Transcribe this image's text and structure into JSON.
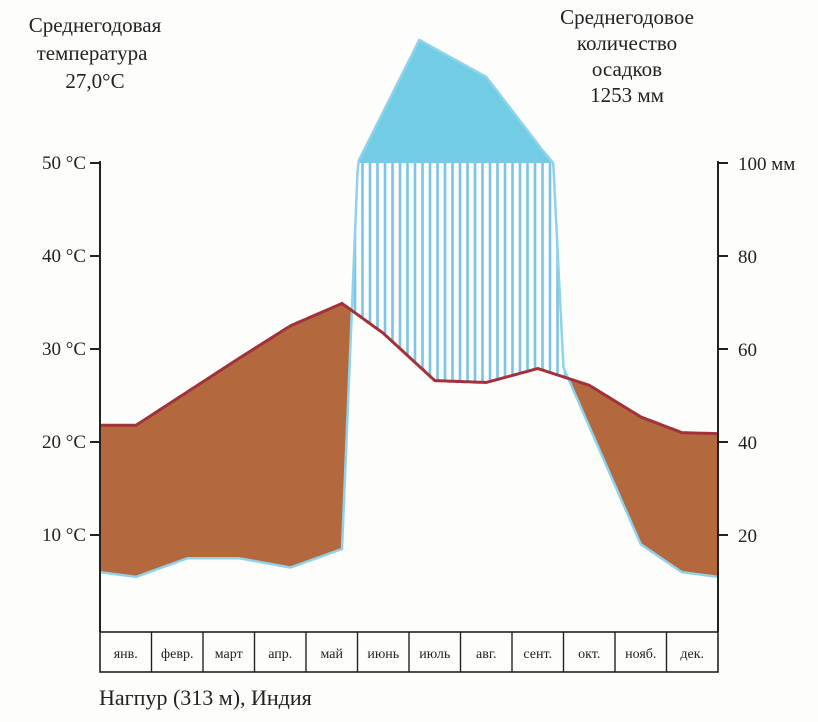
{
  "left_caption": {
    "line1": "Среднегодовая",
    "line2": "температура",
    "line3": "27,0°C"
  },
  "right_caption": {
    "line1": "Среднегодовое",
    "line2": "количество",
    "line3": "осадков",
    "line4": "1253 мм"
  },
  "footer_caption": "Нагпур (313 м), Индия",
  "colors": {
    "temperature_line": "#a1323a",
    "dry_fill": "#b4683e",
    "humid_fill": "#7cc4e4",
    "excess_fill": "#72cce4",
    "precip_outline": "#8fd3ea"
  },
  "chart_data": {
    "type": "climate-diagram",
    "categories": [
      "янв.",
      "февр.",
      "март",
      "апр.",
      "май",
      "июнь",
      "июль",
      "авг.",
      "сент.",
      "окт.",
      "нояб.",
      "дек."
    ],
    "left_axis": {
      "unit": "°C",
      "ylim": [
        0,
        50
      ],
      "ticks": [
        10,
        20,
        30,
        40,
        50
      ],
      "tick_labels": [
        "10 °C",
        "20 °C",
        "30 °C",
        "40 °C",
        "50 °C"
      ]
    },
    "right_axis": {
      "unit": "мм",
      "ylim": [
        0,
        100
      ],
      "ticks": [
        20,
        40,
        60,
        80,
        100
      ],
      "tick_labels": [
        "20",
        "40",
        "60",
        "80",
        "100 мм"
      ]
    },
    "series": [
      {
        "name": "temperature",
        "unit": "°C",
        "x": [
          0,
          0.7,
          1.7,
          2.7,
          3.7,
          4.7,
          5.5,
          6.5,
          7.5,
          8.5,
          9.5,
          10.5,
          11.3,
          12
        ],
        "values": [
          21.8,
          21.8,
          25.4,
          29.0,
          32.5,
          34.9,
          31.7,
          26.6,
          26.4,
          27.9,
          26.1,
          22.7,
          21.0,
          20.9
        ]
      },
      {
        "name": "precipitation",
        "unit": "мм",
        "x": [
          0,
          0.7,
          1.7,
          2.7,
          3.7,
          4.7,
          5.0,
          5.0,
          6.2,
          7.5,
          8.6,
          8.8,
          9.0,
          10.5,
          11.3,
          12
        ],
        "values": [
          12,
          11,
          15,
          15,
          13,
          17,
          98,
          100,
          120,
          114,
          102,
          100,
          56,
          18,
          12,
          11
        ],
        "capped_above_mm": 100
      }
    ]
  }
}
